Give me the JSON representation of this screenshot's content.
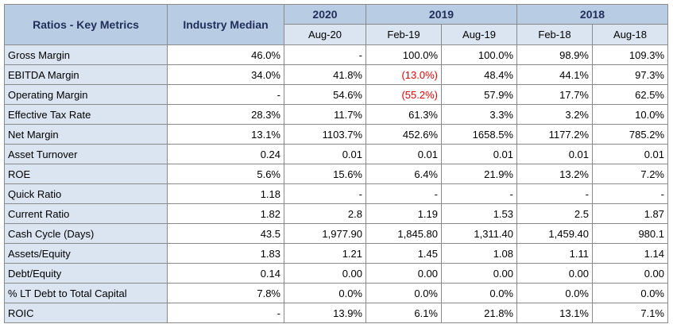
{
  "header": {
    "title": "Ratios - Key Metrics",
    "median": "Industry Median",
    "groups": [
      {
        "year": "2020",
        "months": [
          "Aug-20"
        ]
      },
      {
        "year": "2019",
        "months": [
          "Feb-19",
          "Aug-19"
        ]
      },
      {
        "year": "2018",
        "months": [
          "Feb-18",
          "Aug-18"
        ]
      }
    ]
  },
  "rows": [
    {
      "label": "Gross Margin",
      "values": [
        "46.0%",
        "-",
        "100.0%",
        "100.0%",
        "98.9%",
        "109.3%"
      ]
    },
    {
      "label": "EBITDA Margin",
      "values": [
        "34.0%",
        "41.8%",
        "(13.0%)",
        "48.4%",
        "44.1%",
        "97.3%"
      ]
    },
    {
      "label": "Operating Margin",
      "values": [
        "-",
        "54.6%",
        "(55.2%)",
        "57.9%",
        "17.7%",
        "62.5%"
      ]
    },
    {
      "label": "Effective Tax Rate",
      "values": [
        "28.3%",
        "11.7%",
        "61.3%",
        "3.3%",
        "3.2%",
        "10.0%"
      ]
    },
    {
      "label": "Net Margin",
      "values": [
        "13.1%",
        "1103.7%",
        "452.6%",
        "1658.5%",
        "1177.2%",
        "785.2%"
      ]
    },
    {
      "label": "Asset Turnover",
      "values": [
        "0.24",
        "0.01",
        "0.01",
        "0.01",
        "0.01",
        "0.01"
      ]
    },
    {
      "label": "ROE",
      "values": [
        "5.6%",
        "15.6%",
        "6.4%",
        "21.9%",
        "13.2%",
        "7.2%"
      ]
    },
    {
      "label": "Quick Ratio",
      "values": [
        "1.18",
        "-",
        "-",
        "-",
        "-",
        "-"
      ]
    },
    {
      "label": "Current Ratio",
      "values": [
        "1.82",
        "2.8",
        "1.19",
        "1.53",
        "2.5",
        "1.87"
      ]
    },
    {
      "label": "Cash Cycle (Days)",
      "values": [
        "43.5",
        "1,977.90",
        "1,845.80",
        "1,311.40",
        "1,459.40",
        "980.1"
      ]
    },
    {
      "label": "Assets/Equity",
      "values": [
        "1.83",
        "1.21",
        "1.45",
        "1.08",
        "1.11",
        "1.14"
      ]
    },
    {
      "label": "Debt/Equity",
      "values": [
        "0.14",
        "0.00",
        "0.00",
        "0.00",
        "0.00",
        "0.00"
      ]
    },
    {
      "label": "% LT Debt to Total Capital",
      "values": [
        "7.8%",
        "0.0%",
        "0.0%",
        "0.0%",
        "0.0%",
        "0.0%"
      ]
    },
    {
      "label": "ROIC",
      "values": [
        "-",
        "13.9%",
        "6.1%",
        "21.8%",
        "13.1%",
        "7.1%"
      ]
    }
  ]
}
